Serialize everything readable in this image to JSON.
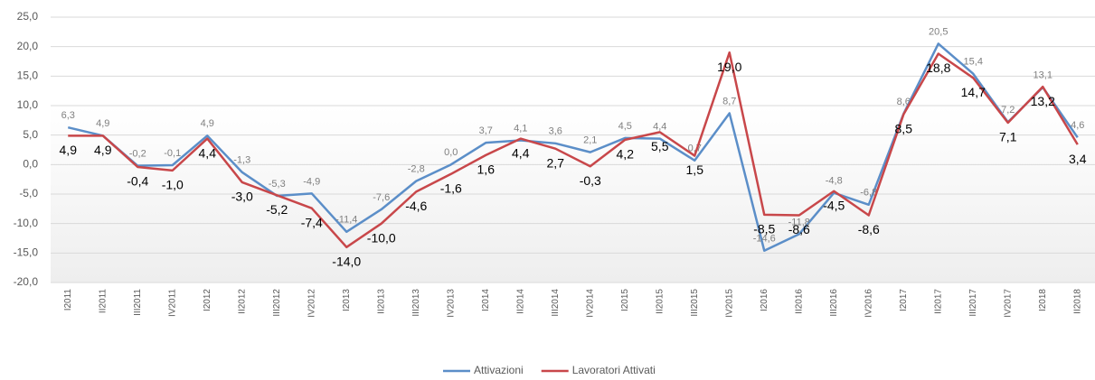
{
  "chart_data": {
    "type": "line",
    "categories": [
      "I2011",
      "II2011",
      "III2011",
      "IV2011",
      "I2012",
      "II2012",
      "III2012",
      "IV2012",
      "I2013",
      "II2013",
      "III2013",
      "IV2013",
      "I2014",
      "II2014",
      "III2014",
      "IV2014",
      "I2015",
      "II2015",
      "III2015",
      "IV2015",
      "I2016",
      "II2016",
      "III2016",
      "IV2016",
      "I2017",
      "II2017",
      "III2017",
      "IV2017",
      "I2018",
      "II2018"
    ],
    "series": [
      {
        "name": "Attivazioni",
        "color": "#5b8ec8",
        "values": [
          6.3,
          4.9,
          -0.2,
          -0.1,
          4.9,
          -1.3,
          -5.3,
          -4.9,
          -11.4,
          -7.6,
          -2.8,
          0,
          3.7,
          4.1,
          3.6,
          2.1,
          4.5,
          4.4,
          0.7,
          8.7,
          -14.6,
          -11.8,
          -4.8,
          -6.8,
          8.6,
          20.5,
          15.4,
          7.2,
          13.1,
          4.6
        ],
        "value_labels": [
          "6,3",
          "4,9",
          "-0,2",
          "-0,1",
          "4,9",
          "-1,3",
          "-5,3",
          "-4,9",
          "-11,4",
          "-7,6",
          "-2,8",
          "0,0",
          "3,7",
          "4,1",
          "3,6",
          "2,1",
          "4,5",
          "4,4",
          "0,7",
          "8,7",
          "-14,6",
          "-11,8",
          "-4,8",
          "-6,8",
          "8,6",
          "20,5",
          "15,4",
          "7,2",
          "13,1",
          "4,6"
        ]
      },
      {
        "name": "Lavoratori Attivati",
        "color": "#c8474a",
        "values": [
          4.9,
          4.9,
          -0.4,
          -1.0,
          4.4,
          -3.0,
          -5.2,
          -7.4,
          -14.0,
          -10.0,
          -4.6,
          -1.6,
          1.6,
          4.4,
          2.7,
          -0.3,
          4.2,
          5.5,
          1.5,
          19.0,
          -8.5,
          -8.6,
          -4.5,
          -8.6,
          8.5,
          18.8,
          14.7,
          7.1,
          13.2,
          3.4
        ],
        "value_labels": [
          "4,9",
          "4,9",
          "-0,4",
          "-1,0",
          "4,4",
          "-3,0",
          "-5,2",
          "-7,4",
          "-14,0",
          "-10,0",
          "-4,6",
          "-1,6",
          "1,6",
          "4,4",
          "2,7",
          "-0,3",
          "4,2",
          "5,5",
          "1,5",
          "19,0",
          "-8,5",
          "-8,6",
          "-4,5",
          "-8,6",
          "8,5",
          "18,8",
          "14,7",
          "7,1",
          "13,2",
          "3,4"
        ]
      }
    ],
    "ylim": [
      -20,
      25
    ],
    "yticks": [
      {
        "value": -20,
        "label": "-20,0"
      },
      {
        "value": -15,
        "label": "-15,0"
      },
      {
        "value": -10,
        "label": "-10,0"
      },
      {
        "value": -5,
        "label": "-5,0"
      },
      {
        "value": 0,
        "label": "0,0"
      },
      {
        "value": 5,
        "label": "5,0"
      },
      {
        "value": 10,
        "label": "10,0"
      },
      {
        "value": 15,
        "label": "15,0"
      },
      {
        "value": 20,
        "label": "20,0"
      },
      {
        "value": 25,
        "label": "25,0"
      }
    ],
    "grid": true,
    "legend": "bottom"
  }
}
